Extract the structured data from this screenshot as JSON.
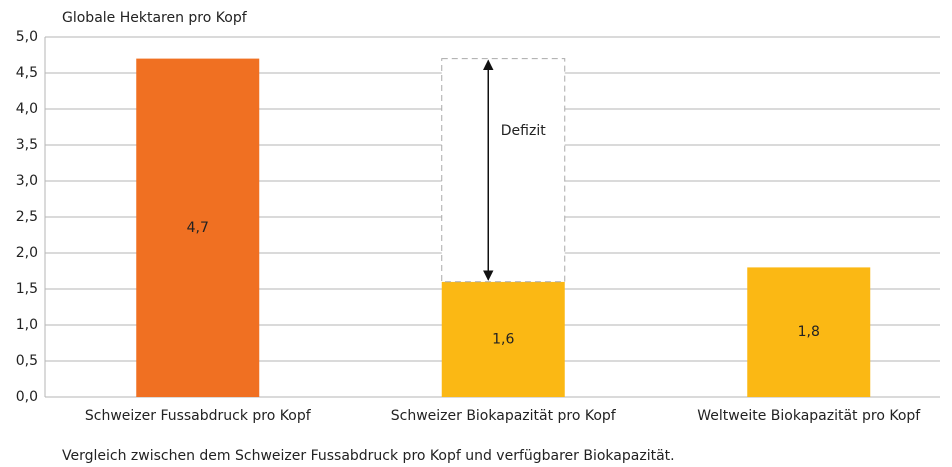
{
  "chart_data": {
    "type": "bar",
    "y_axis_label": "Globale Hektaren pro Kopf",
    "caption": "Vergleich zwischen dem Schweizer Fussabdruck pro Kopf und verfügbarer Biokapazität.",
    "categories": [
      "Schweizer Fussabdruck pro Kopf",
      "Schweizer Biokapazität pro Kopf",
      "Weltweite Biokapazität pro Kopf"
    ],
    "values": [
      4.7,
      1.6,
      1.8
    ],
    "value_labels": [
      "4,7",
      "1,6",
      "1,8"
    ],
    "colors": [
      "#f07022",
      "#fbb814",
      "#fbb814"
    ],
    "annotation": "Defizit",
    "ylim": [
      0,
      5
    ],
    "yticks": [
      {
        "value": 0,
        "label": "0,0"
      },
      {
        "value": 0.5,
        "label": "0,5"
      },
      {
        "value": 1,
        "label": "1,0"
      },
      {
        "value": 1.5,
        "label": "1,5"
      },
      {
        "value": 2,
        "label": "2,0"
      },
      {
        "value": 2.5,
        "label": "2,5"
      },
      {
        "value": 3,
        "label": "3,0"
      },
      {
        "value": 3.5,
        "label": "3,5"
      },
      {
        "value": 4,
        "label": "4,0"
      },
      {
        "value": 4.5,
        "label": "4,5"
      },
      {
        "value": 5,
        "label": "5,0"
      }
    ],
    "grid": true
  }
}
